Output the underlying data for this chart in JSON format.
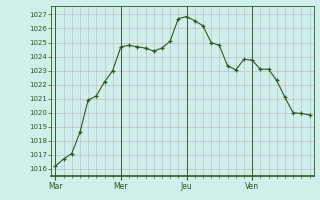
{
  "background_color": "#cff0ea",
  "grid_color": "#c0aec8",
  "line_color": "#2d5a1b",
  "marker_color": "#2d5a1b",
  "tick_color": "#2d5a1b",
  "spine_color": "#2d5a1b",
  "ylim": [
    1015.5,
    1027.6
  ],
  "yticks": [
    1016,
    1017,
    1018,
    1019,
    1020,
    1021,
    1022,
    1023,
    1024,
    1025,
    1026,
    1027
  ],
  "day_labels": [
    "Mar",
    "Mer",
    "Jeu",
    "Ven"
  ],
  "day_positions": [
    0,
    8,
    16,
    24
  ],
  "xlim": [
    -0.5,
    31.5
  ],
  "x_values": [
    0,
    1,
    2,
    3,
    4,
    5,
    6,
    7,
    8,
    9,
    10,
    11,
    12,
    13,
    14,
    15,
    16,
    17,
    18,
    19,
    20,
    21,
    22,
    23,
    24,
    25,
    26,
    27,
    28,
    29,
    30,
    31
  ],
  "y_values": [
    1016.2,
    1016.7,
    1017.1,
    1018.6,
    1020.9,
    1021.2,
    1022.2,
    1023.0,
    1024.7,
    1024.8,
    1024.7,
    1024.6,
    1024.4,
    1024.6,
    1025.1,
    1026.7,
    1026.85,
    1026.55,
    1026.2,
    1025.0,
    1024.8,
    1023.35,
    1023.05,
    1023.8,
    1023.75,
    1023.1,
    1023.1,
    1022.3,
    1021.1,
    1020.0,
    1019.95,
    1019.85
  ]
}
